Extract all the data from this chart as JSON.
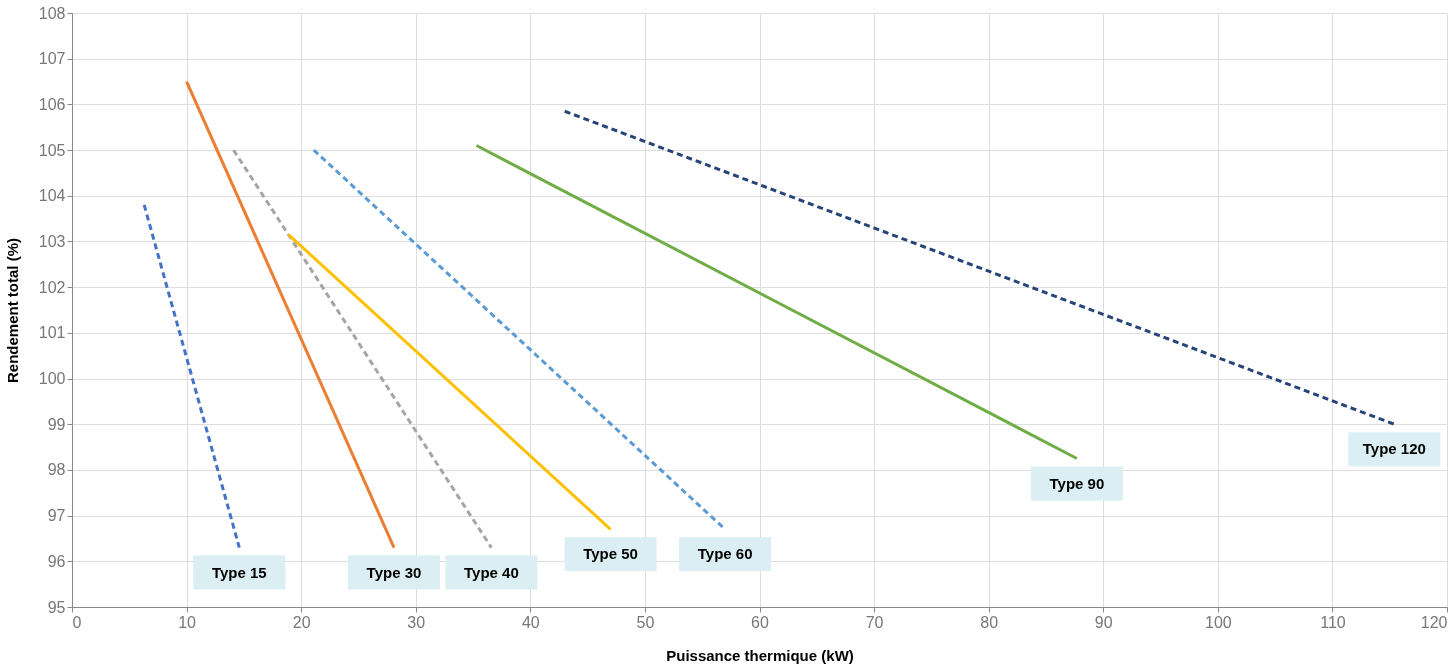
{
  "chart_data": {
    "type": "line",
    "xlabel": "Puissance thermique (kW)",
    "ylabel": "Rendement  total (%)",
    "xlim": [
      0,
      120
    ],
    "xticks": [
      0,
      10,
      20,
      30,
      40,
      50,
      60,
      70,
      80,
      90,
      100,
      110,
      120
    ],
    "ylim": [
      95,
      108
    ],
    "yticks": [
      95,
      96,
      97,
      98,
      99,
      100,
      101,
      102,
      103,
      104,
      105,
      106,
      107,
      108
    ],
    "grid": true,
    "marker": "none",
    "series": [
      {
        "name": "Type 15",
        "color": "#4472c4",
        "line_style": "dashed",
        "x": [
          6.3,
          14.6
        ],
        "values": [
          103.8,
          96.3
        ]
      },
      {
        "name": "Type 30",
        "color": "#ed7d31",
        "line_style": "solid",
        "x": [
          10,
          28.1
        ],
        "values": [
          106.5,
          96.3
        ]
      },
      {
        "name": "Type 40",
        "color": "#a5a5a5",
        "line_style": "dashed",
        "x": [
          14.1,
          36.6
        ],
        "values": [
          105.0,
          96.3
        ]
      },
      {
        "name": "Type 50",
        "color": "#ffc000",
        "line_style": "solid",
        "x": [
          18.9,
          47.0
        ],
        "values": [
          103.15,
          96.7
        ]
      },
      {
        "name": "Type 60",
        "color": "#5b9bd5",
        "line_style": "dashed",
        "x": [
          21.1,
          57.0
        ],
        "values": [
          105.0,
          96.7
        ]
      },
      {
        "name": "Type 90",
        "color": "#70ad47",
        "line_style": "solid",
        "x": [
          35.3,
          87.7
        ],
        "values": [
          105.1,
          98.25
        ]
      },
      {
        "name": "Type 120",
        "color": "#264478",
        "line_style": "dashed",
        "x": [
          43.0,
          115.4
        ],
        "values": [
          105.85,
          99.0
        ]
      }
    ]
  }
}
